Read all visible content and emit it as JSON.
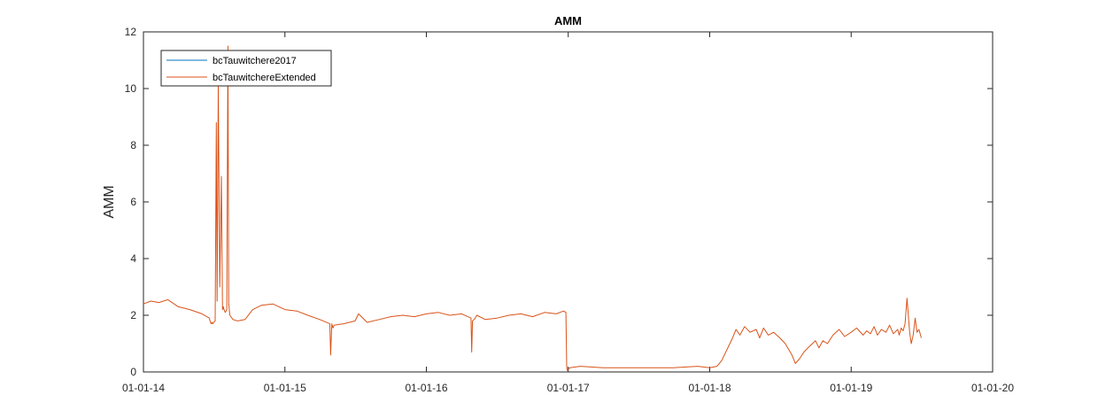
{
  "chart_data": {
    "type": "line",
    "title": "AMM",
    "xlabel": "",
    "ylabel": "AMM",
    "xlim": [
      "01-01-14",
      "01-01-20"
    ],
    "ylim": [
      0,
      12
    ],
    "x_tick_labels": [
      "01-01-14",
      "01-01-15",
      "01-01-16",
      "01-01-17",
      "01-01-18",
      "01-01-19",
      "01-01-20"
    ],
    "y_ticks": [
      0,
      2,
      4,
      6,
      8,
      10,
      12
    ],
    "grid": false,
    "legend": {
      "position": "top-left",
      "entries": [
        "bcTauwitchere2017",
        "bcTauwitchereExtended"
      ]
    },
    "series": [
      {
        "name": "bcTauwitchere2017",
        "color": "#0072BD",
        "x": [],
        "y": []
      },
      {
        "name": "bcTauwitchereExtended",
        "color": "#D95319",
        "x": [
          "2014-01-01",
          "2014-01-20",
          "2014-02-10",
          "2014-03-05",
          "2014-04-01",
          "2014-05-01",
          "2014-06-01",
          "2014-06-20",
          "2014-06-23",
          "2014-06-25",
          "2014-06-27",
          "2014-06-29",
          "2014-07-01",
          "2014-07-05",
          "2014-07-08",
          "2014-07-10",
          "2014-07-13",
          "2014-07-17",
          "2014-07-21",
          "2014-07-24",
          "2014-07-26",
          "2014-07-28",
          "2014-07-31",
          "2014-08-04",
          "2014-08-07",
          "2014-08-09",
          "2014-08-12",
          "2014-08-20",
          "2014-09-01",
          "2014-09-20",
          "2014-10-10",
          "2014-11-01",
          "2014-12-01",
          "2015-01-01",
          "2015-02-01",
          "2015-03-01",
          "2015-04-01",
          "2015-04-27",
          "2015-04-29",
          "2015-05-02",
          "2015-05-05",
          "2015-05-08",
          "2015-06-01",
          "2015-07-01",
          "2015-07-10",
          "2015-08-01",
          "2015-09-01",
          "2015-10-01",
          "2015-11-01",
          "2015-12-01",
          "2016-01-01",
          "2016-02-01",
          "2016-03-01",
          "2016-04-01",
          "2016-04-25",
          "2016-04-27",
          "2016-04-29",
          "2016-05-03",
          "2016-05-06",
          "2016-05-10",
          "2016-06-01",
          "2016-07-01",
          "2016-08-01",
          "2016-09-01",
          "2016-10-01",
          "2016-11-01",
          "2016-12-01",
          "2016-12-20",
          "2016-12-26",
          "2016-12-28",
          "2016-12-30",
          "2017-01-05",
          "2017-02-01",
          "2017-04-01",
          "2017-06-01",
          "2017-08-01",
          "2017-10-01",
          "2017-12-01",
          "2018-01-01",
          "2018-01-20",
          "2018-02-01",
          "2018-02-15",
          "2018-03-01",
          "2018-03-10",
          "2018-03-20",
          "2018-04-01",
          "2018-04-15",
          "2018-05-01",
          "2018-05-10",
          "2018-05-20",
          "2018-06-01",
          "2018-06-15",
          "2018-07-01",
          "2018-07-15",
          "2018-08-01",
          "2018-08-10",
          "2018-08-20",
          "2018-09-01",
          "2018-09-15",
          "2018-10-01",
          "2018-10-10",
          "2018-10-20",
          "2018-11-01",
          "2018-11-15",
          "2018-12-01",
          "2018-12-15",
          "2019-01-01",
          "2019-01-15",
          "2019-02-01",
          "2019-02-10",
          "2019-02-20",
          "2019-03-01",
          "2019-03-10",
          "2019-03-20",
          "2019-04-01",
          "2019-04-10",
          "2019-04-20",
          "2019-05-01",
          "2019-05-05",
          "2019-05-10",
          "2019-05-15",
          "2019-05-20",
          "2019-05-25",
          "2019-06-01",
          "2019-06-05",
          "2019-06-10",
          "2019-06-15",
          "2019-06-20",
          "2019-06-25",
          "2019-07-01"
        ],
        "y": [
          2.4,
          2.5,
          2.45,
          2.55,
          2.3,
          2.2,
          2.05,
          1.9,
          1.75,
          1.7,
          1.75,
          1.7,
          1.75,
          1.8,
          8.8,
          2.5,
          10.1,
          3.0,
          6.9,
          2.2,
          2.3,
          2.2,
          2.1,
          2.2,
          11.5,
          2.4,
          2.0,
          1.85,
          1.8,
          1.85,
          2.2,
          2.35,
          2.4,
          2.2,
          2.15,
          2.0,
          1.85,
          1.7,
          0.6,
          1.7,
          1.55,
          1.65,
          1.7,
          1.8,
          2.05,
          1.75,
          1.85,
          1.95,
          2.0,
          1.95,
          2.05,
          2.1,
          2.0,
          2.05,
          1.9,
          0.7,
          1.8,
          1.85,
          1.9,
          2.0,
          1.85,
          1.9,
          2.0,
          2.05,
          1.95,
          2.1,
          2.05,
          2.15,
          2.1,
          0.15,
          0.05,
          0.15,
          0.2,
          0.15,
          0.15,
          0.15,
          0.15,
          0.2,
          0.15,
          0.2,
          0.4,
          0.8,
          1.2,
          1.5,
          1.3,
          1.6,
          1.4,
          1.5,
          1.2,
          1.55,
          1.3,
          1.4,
          1.2,
          1.0,
          0.6,
          0.3,
          0.45,
          0.7,
          0.9,
          1.1,
          0.85,
          1.1,
          1.0,
          1.3,
          1.5,
          1.25,
          1.4,
          1.55,
          1.3,
          1.45,
          1.35,
          1.6,
          1.3,
          1.5,
          1.4,
          1.65,
          1.35,
          1.5,
          1.3,
          1.55,
          1.45,
          1.7,
          2.6,
          1.4,
          1.0,
          1.3,
          1.9,
          1.4,
          1.5,
          1.2
        ]
      }
    ]
  }
}
